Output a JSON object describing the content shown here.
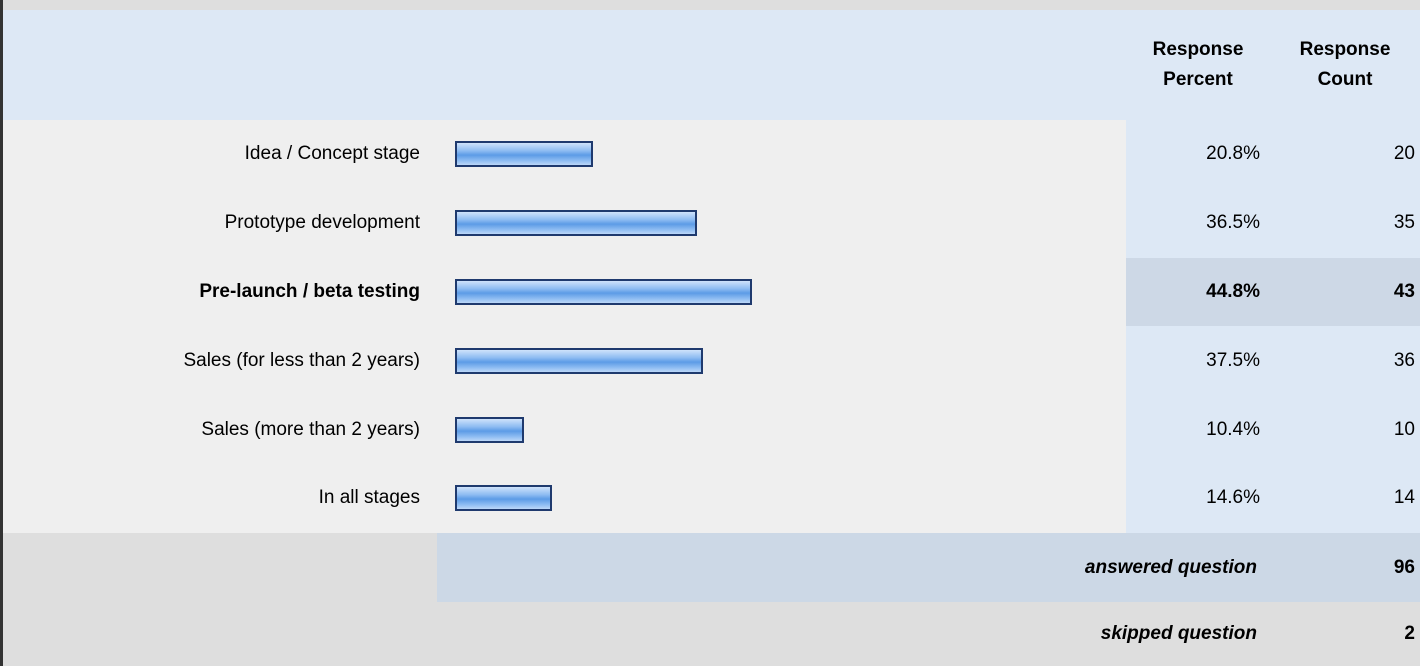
{
  "table": {
    "columns": [
      "Response Percent",
      "Response Count"
    ],
    "highlighted_row": 2,
    "rows": [
      {
        "label": "Idea / Concept stage",
        "percent": 20.8,
        "percent_label": "20.8%",
        "count": 20
      },
      {
        "label": "Prototype development",
        "percent": 36.5,
        "percent_label": "36.5%",
        "count": 35
      },
      {
        "label": "Pre-launch / beta testing",
        "percent": 44.8,
        "percent_label": "44.8%",
        "count": 43
      },
      {
        "label": "Sales (for less than 2 years)",
        "percent": 37.5,
        "percent_label": "37.5%",
        "count": 36
      },
      {
        "label": "Sales (more than 2 years)",
        "percent": 10.4,
        "percent_label": "10.4%",
        "count": 10
      },
      {
        "label": "In all stages",
        "percent": 14.6,
        "percent_label": "14.6%",
        "count": 14
      }
    ],
    "answered": {
      "label": "answered question",
      "value": 96
    },
    "skipped": {
      "label": "skipped question",
      "value": 2
    }
  }
}
